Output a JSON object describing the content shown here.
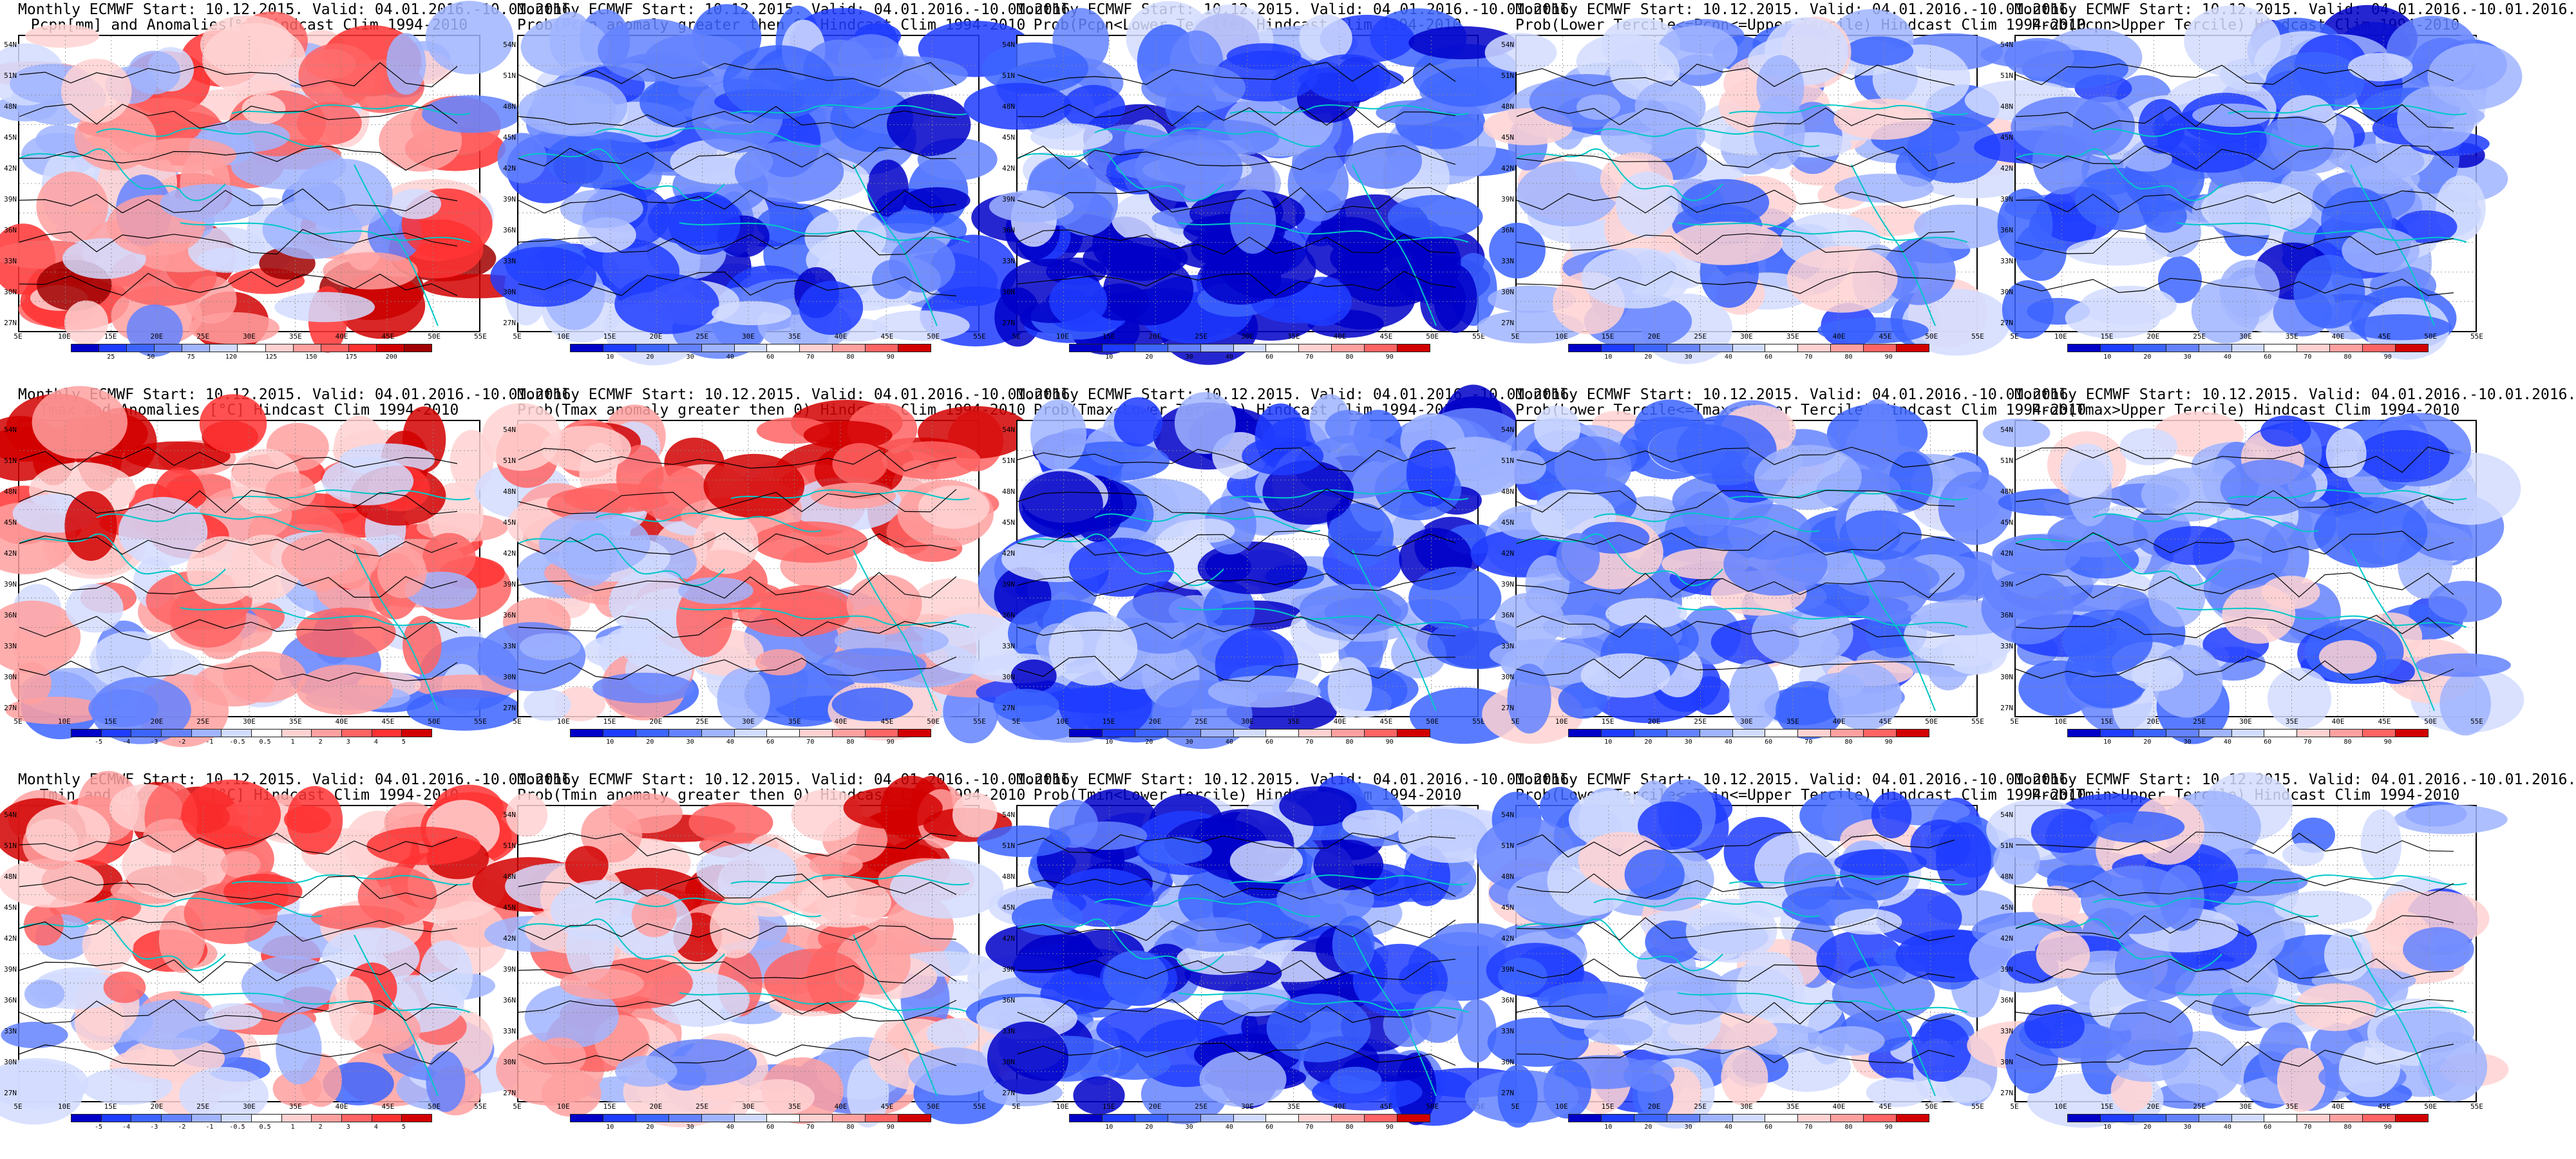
{
  "palettes": {
    "pcpn": [
      "#0000c8",
      "#1e3cff",
      "#3c64ff",
      "#6482ff",
      "#a0b4ff",
      "#d2dcff",
      "#ffffff",
      "#ffd2d2",
      "#ffa0a0",
      "#ff6464",
      "#ff3232",
      "#d20000",
      "#a00000"
    ],
    "temp": [
      "#0000c8",
      "#1e3cff",
      "#3c64ff",
      "#6482ff",
      "#a0b4ff",
      "#d2dcff",
      "#ffffff",
      "#ffd2d2",
      "#ffa0a0",
      "#ff6464",
      "#ff3232",
      "#d20000"
    ],
    "prob": [
      "#0000c8",
      "#1e3cff",
      "#3c64ff",
      "#6482ff",
      "#a0b4ff",
      "#d2dcff",
      "#ffffff",
      "#ffd2d2",
      "#ffa0a0",
      "#ff6464",
      "#d20000"
    ]
  },
  "axes": {
    "lat_labels": [
      "54N",
      "51N",
      "48N",
      "45N",
      "42N",
      "39N",
      "36N",
      "33N",
      "30N",
      "27N"
    ],
    "lon_labels": [
      "5E",
      "10E",
      "15E",
      "20E",
      "25E",
      "30E",
      "35E",
      "40E",
      "45E",
      "50E",
      "55E"
    ]
  },
  "panels": [
    {
      "id": "p1",
      "title1": "Monthly ECMWF Start: 10.12.2015. Valid: 04.01.2016.-10.01.2016.",
      "title2": "Pcpn[mm] and Anomalies[%] Hindcast Clim 1994-2010",
      "palette": "pcpn",
      "bias": 0.55,
      "ticks": [
        "25",
        "50",
        "75",
        "120",
        "125",
        "150",
        "175",
        "200"
      ]
    },
    {
      "id": "p2",
      "title1": "Monthly ECMWF Start: 10.12.2015. Valid: 04.01.2016.-10.01.2016.",
      "title2": "Prob(Pcpn anomaly greater then 0) Hindcast Clim 1994-2010",
      "palette": "prob",
      "bias": 0.32,
      "ticks": [
        "10",
        "20",
        "30",
        "40",
        "60",
        "70",
        "80",
        "90"
      ]
    },
    {
      "id": "p3",
      "title1": "Monthly ECMWF Start: 10.12.2015. Valid: 04.01.2016.-10.01.2016.",
      "title2": "Prob(Pcpn<Lower Tercile) Hindcast Clim 1994-2010",
      "palette": "prob",
      "bias": 0.3,
      "ticks": [
        "10",
        "20",
        "30",
        "40",
        "60",
        "70",
        "80",
        "90"
      ]
    },
    {
      "id": "p4",
      "title1": "Monthly ECMWF Start: 10.12.2015. Valid: 04.01.2016.-10.01.2016.",
      "title2": "Prob(Lower Tercile<=Pcpn<=Upper Tercile) Hindcast Clim 1994-2010",
      "palette": "prob",
      "bias": 0.45,
      "ticks": [
        "10",
        "20",
        "30",
        "40",
        "60",
        "70",
        "80",
        "90"
      ]
    },
    {
      "id": "p5",
      "title1": "Monthly ECMWF Start: 10.12.2015. Valid: 04.01.2016.-10.01.2016.",
      "title2": "Prob(Pcpn>Upper Tercile) Hindcast Clim 1994-2010",
      "palette": "prob",
      "bias": 0.35,
      "ticks": [
        "10",
        "20",
        "30",
        "40",
        "60",
        "70",
        "80",
        "90"
      ]
    },
    {
      "id": "p6",
      "title1": "Monthly ECMWF Start: 10.12.2015. Valid: 04.01.2016.-10.01.2016.",
      "title2": "Tmax and Anomalies [°C] Hindcast Clim 1994-2010",
      "palette": "temp",
      "bias": 0.62,
      "ticks": [
        "-5",
        "-4",
        "-3",
        "-2",
        "-1",
        "-0.5",
        "0.5",
        "1",
        "2",
        "3",
        "4",
        "5"
      ]
    },
    {
      "id": "p7",
      "title1": "Monthly ECMWF Start: 10.12.2015. Valid: 04.01.2016.-10.01.2016.",
      "title2": "Prob(Tmax anomaly greater then 0) Hindcast Clim 1994-2010",
      "palette": "prob",
      "bias": 0.66,
      "ticks": [
        "10",
        "20",
        "30",
        "40",
        "60",
        "70",
        "80",
        "90"
      ]
    },
    {
      "id": "p8",
      "title1": "Monthly ECMWF Start: 10.12.2015. Valid: 04.01.2016.-10.01.2016.",
      "title2": "Prob(Tmax<Lower Tercile) Hindcast Clim 1994-2010",
      "palette": "prob",
      "bias": 0.25,
      "ticks": [
        "10",
        "20",
        "30",
        "40",
        "60",
        "70",
        "80",
        "90"
      ]
    },
    {
      "id": "p9",
      "title1": "Monthly ECMWF Start: 10.12.2015. Valid: 04.01.2016.-10.01.2016.",
      "title2": "Prob(Lower Tercile<=Tmax<=Upper Tercile) Hindcast Clim 1994-2010",
      "palette": "prob",
      "bias": 0.42,
      "ticks": [
        "10",
        "20",
        "30",
        "40",
        "60",
        "70",
        "80",
        "90"
      ]
    },
    {
      "id": "p10",
      "title1": "Monthly ECMWF Start: 10.12.2015. Valid: 04.01.2016.-10.01.2016.",
      "title2": "Prob(Tmax>Upper Tercile) Hindcast Clim 1994-2010",
      "palette": "prob",
      "bias": 0.4,
      "ticks": [
        "10",
        "20",
        "30",
        "40",
        "60",
        "70",
        "80",
        "90"
      ]
    },
    {
      "id": "p11",
      "title1": "Monthly ECMWF Start: 10.12.2015. Valid: 04.01.2016.-10.01.2016.",
      "title2": "Tmin and Anomalies [°C] Hindcast Clim 1994-2010",
      "palette": "temp",
      "bias": 0.64,
      "ticks": [
        "-5",
        "-4",
        "-3",
        "-2",
        "-1",
        "-0.5",
        "0.5",
        "1",
        "2",
        "3",
        "4",
        "5"
      ]
    },
    {
      "id": "p12",
      "title1": "Monthly ECMWF Start: 10.12.2015. Valid: 04.01.2016.-10.01.2016.",
      "title2": "Prob(Tmin anomaly greater then 0) Hindcast Clim 1994-2010",
      "palette": "prob",
      "bias": 0.68,
      "ticks": [
        "10",
        "20",
        "30",
        "40",
        "60",
        "70",
        "80",
        "90"
      ]
    },
    {
      "id": "p13",
      "title1": "Monthly ECMWF Start: 10.12.2015. Valid: 04.01.2016.-10.01.2016.",
      "title2": "Prob(Tmin<Lower Tercile) Hindcast Clim 1994-2010",
      "palette": "prob",
      "bias": 0.24,
      "ticks": [
        "10",
        "20",
        "30",
        "40",
        "60",
        "70",
        "80",
        "90"
      ]
    },
    {
      "id": "p14",
      "title1": "Monthly ECMWF Start: 10.12.2015. Valid: 04.01.2016.-10.01.2016.",
      "title2": "Prob(Lower Tercile<=Tmin<=Upper Tercile) Hindcast Clim 1994-2010",
      "palette": "prob",
      "bias": 0.4,
      "ticks": [
        "10",
        "20",
        "30",
        "40",
        "60",
        "70",
        "80",
        "90"
      ]
    },
    {
      "id": "p15",
      "title1": "Monthly ECMWF Start: 10.12.2015. Valid: 04.01.2016.-10.01.2016.",
      "title2": "Prob(Tmin>Upper Tercile) Hindcast Clim 1994-2010",
      "palette": "prob",
      "bias": 0.42,
      "ticks": [
        "10",
        "20",
        "30",
        "40",
        "60",
        "70",
        "80",
        "90"
      ]
    }
  ]
}
